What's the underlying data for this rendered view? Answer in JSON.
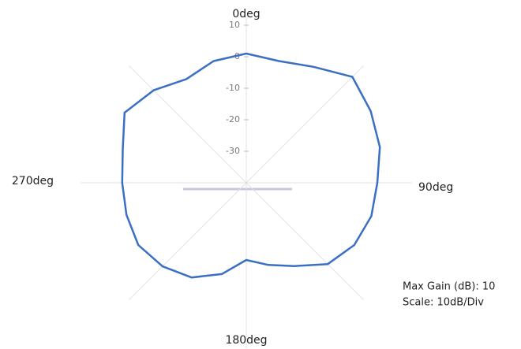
{
  "chart_data": {
    "type": "polar",
    "theta": [
      0,
      15,
      30,
      45,
      60,
      75,
      90,
      105,
      120,
      135,
      150,
      165,
      180,
      195,
      210,
      225,
      240,
      255,
      270,
      285,
      300,
      315,
      330,
      345
    ],
    "values": [
      1,
      0,
      2.5,
      7.5,
      5.5,
      3.8,
      1.5,
      1,
      -0.5,
      -3.5,
      -9.5,
      -13,
      -15.5,
      -10,
      -5.3,
      -2.5,
      -0.5,
      -0.7,
      -0.7,
      0.5,
      4.5,
      1.5,
      -2,
      0
    ],
    "color": "#3a6fc4",
    "rlim": [
      -40,
      10
    ],
    "rticks": [
      10,
      0,
      -10,
      -20,
      -30
    ],
    "angle_labels": [
      {
        "value": 0,
        "label": "0deg"
      },
      {
        "value": 90,
        "label": "90deg"
      },
      {
        "value": 180,
        "label": "180deg"
      },
      {
        "value": 270,
        "label": "270deg"
      }
    ],
    "spokes": [
      0,
      45,
      90,
      135,
      180,
      225,
      270,
      315
    ],
    "notes": [
      "Max Gain (dB): 10",
      "Scale: 10dB/Div"
    ]
  }
}
